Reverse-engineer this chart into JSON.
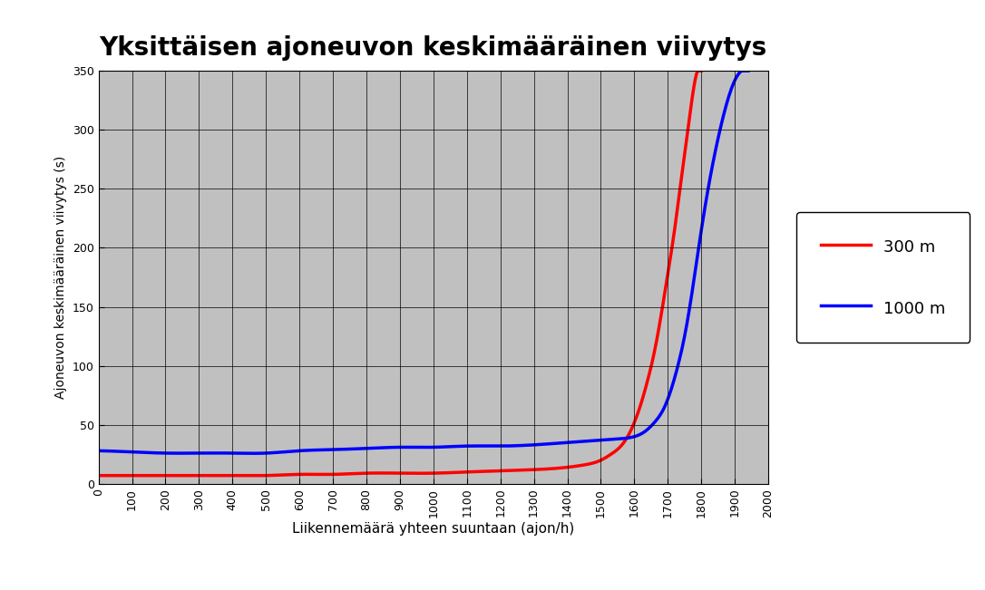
{
  "title": "Yksittäisen ajoneuvon keskimääräinen viivytys",
  "xlabel": "Liikennemäärä yhteen suuntaan (ajon/h)",
  "ylabel": "Ajoneuvon keskimääräinen viivytys (s)",
  "xlim": [
    0,
    2000
  ],
  "ylim": [
    0,
    350
  ],
  "xticks": [
    0,
    100,
    200,
    300,
    400,
    500,
    600,
    700,
    800,
    900,
    1000,
    1100,
    1200,
    1300,
    1400,
    1500,
    1600,
    1700,
    1800,
    1900,
    2000
  ],
  "yticks": [
    0,
    50,
    100,
    150,
    200,
    250,
    300,
    350
  ],
  "plot_bg_color": "#c0c0c0",
  "outer_bg_color": "#ffffff",
  "legend_300m": "300 m",
  "legend_1000m": "1000 m",
  "color_300m": "#ff0000",
  "color_1000m": "#0000ff",
  "line_width": 2.5,
  "red_x": [
    0,
    100,
    200,
    300,
    400,
    500,
    600,
    700,
    800,
    900,
    1000,
    1100,
    1200,
    1300,
    1400,
    1450,
    1500,
    1530,
    1560,
    1580,
    1600,
    1620,
    1640,
    1660,
    1680,
    1700,
    1720,
    1740,
    1760,
    1780,
    1800
  ],
  "red_y": [
    7,
    7,
    7,
    7,
    7,
    7,
    8,
    8,
    9,
    9,
    9,
    10,
    11,
    12,
    14,
    16,
    20,
    25,
    32,
    40,
    52,
    68,
    88,
    112,
    143,
    178,
    215,
    258,
    300,
    340,
    350
  ],
  "blue_x": [
    0,
    100,
    200,
    300,
    400,
    500,
    600,
    700,
    800,
    900,
    1000,
    1100,
    1200,
    1300,
    1400,
    1500,
    1550,
    1600,
    1630,
    1660,
    1690,
    1710,
    1730,
    1750,
    1770,
    1800,
    1830,
    1860,
    1890,
    1920,
    1940
  ],
  "blue_y": [
    28,
    27,
    26,
    26,
    26,
    26,
    28,
    29,
    30,
    31,
    31,
    32,
    32,
    33,
    35,
    37,
    38,
    40,
    44,
    52,
    65,
    80,
    100,
    125,
    158,
    215,
    265,
    305,
    335,
    350,
    350
  ]
}
